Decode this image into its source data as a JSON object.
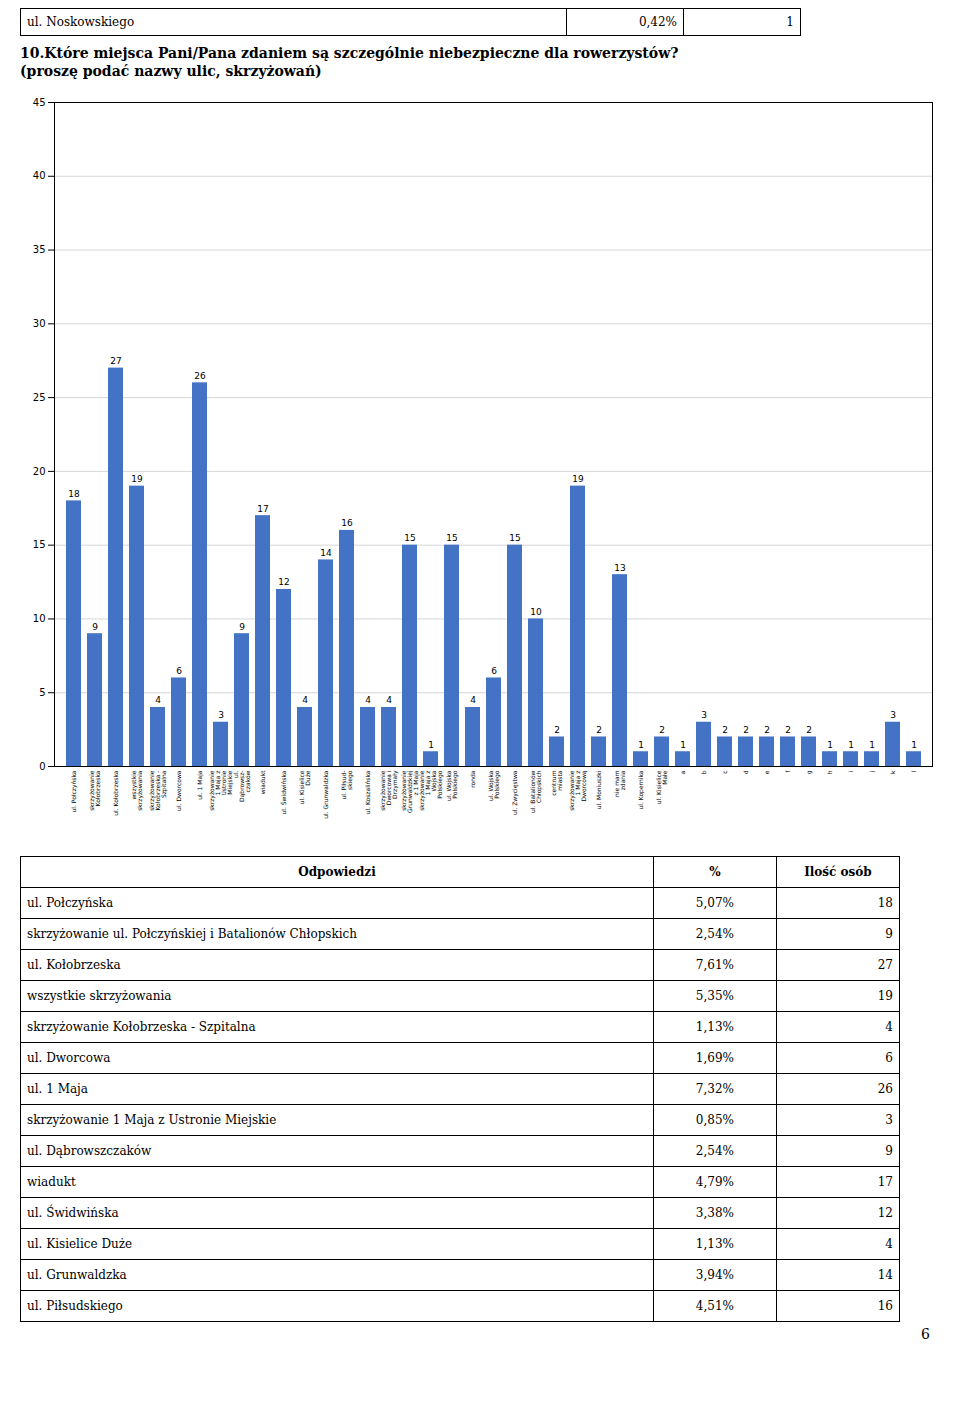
{
  "top_table_row": [
    "ul. Noskowskiego",
    "0,42%",
    "1"
  ],
  "chart_data": {
    "type": "bar",
    "title": "10.Które miejsca Pani/Pana zdaniem są szczególnie niebezpieczne dla rowerzystów?",
    "subtitle": "(proszę podać nazwy ulic, skrzyżowań)",
    "categories": [
      "ul. Połczyńska",
      "skrzyżowanie\nKołobrzeska",
      "ul. Kołobrzeska",
      "wszystkie\nskrzyżowania",
      "skrzyżowanie\nKołobrzeska -\nSzpitalna",
      "ul. Dworcowa",
      "ul. 1 Maja",
      "skrzyżowanie\n1 Maja z\nUstronie\nMiejskie",
      "ul.\nDąbrowsz-\nczaków",
      "wiadukt",
      "ul. Świdwińska",
      "ul. Kisielice\nDuże",
      "ul. Grunwaldzka",
      "ul. Piłsud-\nskiego",
      "ul. Koszalińska",
      "skrzyżowanie\nDworcowa i\nDrzymały",
      "skrzyżowanie\nGrunwaldzkiej\nz 1 Maja",
      "skrzyżowanie\n1 Maja z\nWojska\nPolskiego",
      "ul. Wojska\nPolskiego",
      "ronda",
      "ul. Wojska\nPolskiego",
      "ul. Zwycięstwa",
      "ul. Batalionów\nChłopskich",
      "centrum\nmiasta",
      "skrzyżowanie\n1 Maja z\nDworcową",
      "ul. Moniuszki",
      "nie mam\nzdania",
      "ul. Kopernika",
      "ul. Kisielice\nMałe",
      "a",
      "b",
      "c",
      "d",
      "e",
      "f",
      "g",
      "h",
      "i",
      "j",
      "k",
      "l"
    ],
    "values": [
      18,
      9,
      27,
      19,
      4,
      6,
      26,
      3,
      9,
      17,
      12,
      4,
      14,
      16,
      4,
      4,
      15,
      1,
      15,
      4,
      6,
      15,
      10,
      2,
      19,
      2,
      13,
      1,
      2,
      1,
      3,
      2,
      2,
      2,
      2,
      2,
      1,
      1,
      1,
      3,
      1
    ],
    "color": "#4472C4",
    "ylim": [
      0,
      45
    ],
    "yticks": [
      0,
      5,
      10,
      15,
      20,
      25,
      30,
      35,
      40,
      45
    ],
    "grid": true,
    "data_labels": true
  },
  "table": {
    "header": [
      "Odpowiedzi",
      "%",
      "Ilość osób"
    ],
    "rows": [
      [
        "ul. Połczyńska",
        "5,07%",
        "18"
      ],
      [
        "skrzyżowanie ul. Połczyńskiej i Batalionów Chłopskich",
        "2,54%",
        "9"
      ],
      [
        "ul. Kołobrzeska",
        "7,61%",
        "27"
      ],
      [
        "wszystkie skrzyżowania",
        "5,35%",
        "19"
      ],
      [
        "skrzyżowanie Kołobrzeska - Szpitalna",
        "1,13%",
        "4"
      ],
      [
        "ul. Dworcowa",
        "1,69%",
        "6"
      ],
      [
        "ul. 1 Maja",
        "7,32%",
        "26"
      ],
      [
        "skrzyżowanie 1 Maja z Ustronie Miejskie",
        "0,85%",
        "3"
      ],
      [
        "ul. Dąbrowszczaków",
        "2,54%",
        "9"
      ],
      [
        "wiadukt",
        "4,79%",
        "17"
      ],
      [
        "ul. Świdwińska",
        "3,38%",
        "12"
      ],
      [
        "ul. Kisielice Duże",
        "1,13%",
        "4"
      ],
      [
        "ul. Grunwaldzka",
        "3,94%",
        "14"
      ],
      [
        "ul. Piłsudskiego",
        "4,51%",
        "16"
      ]
    ]
  },
  "page_number": "6"
}
